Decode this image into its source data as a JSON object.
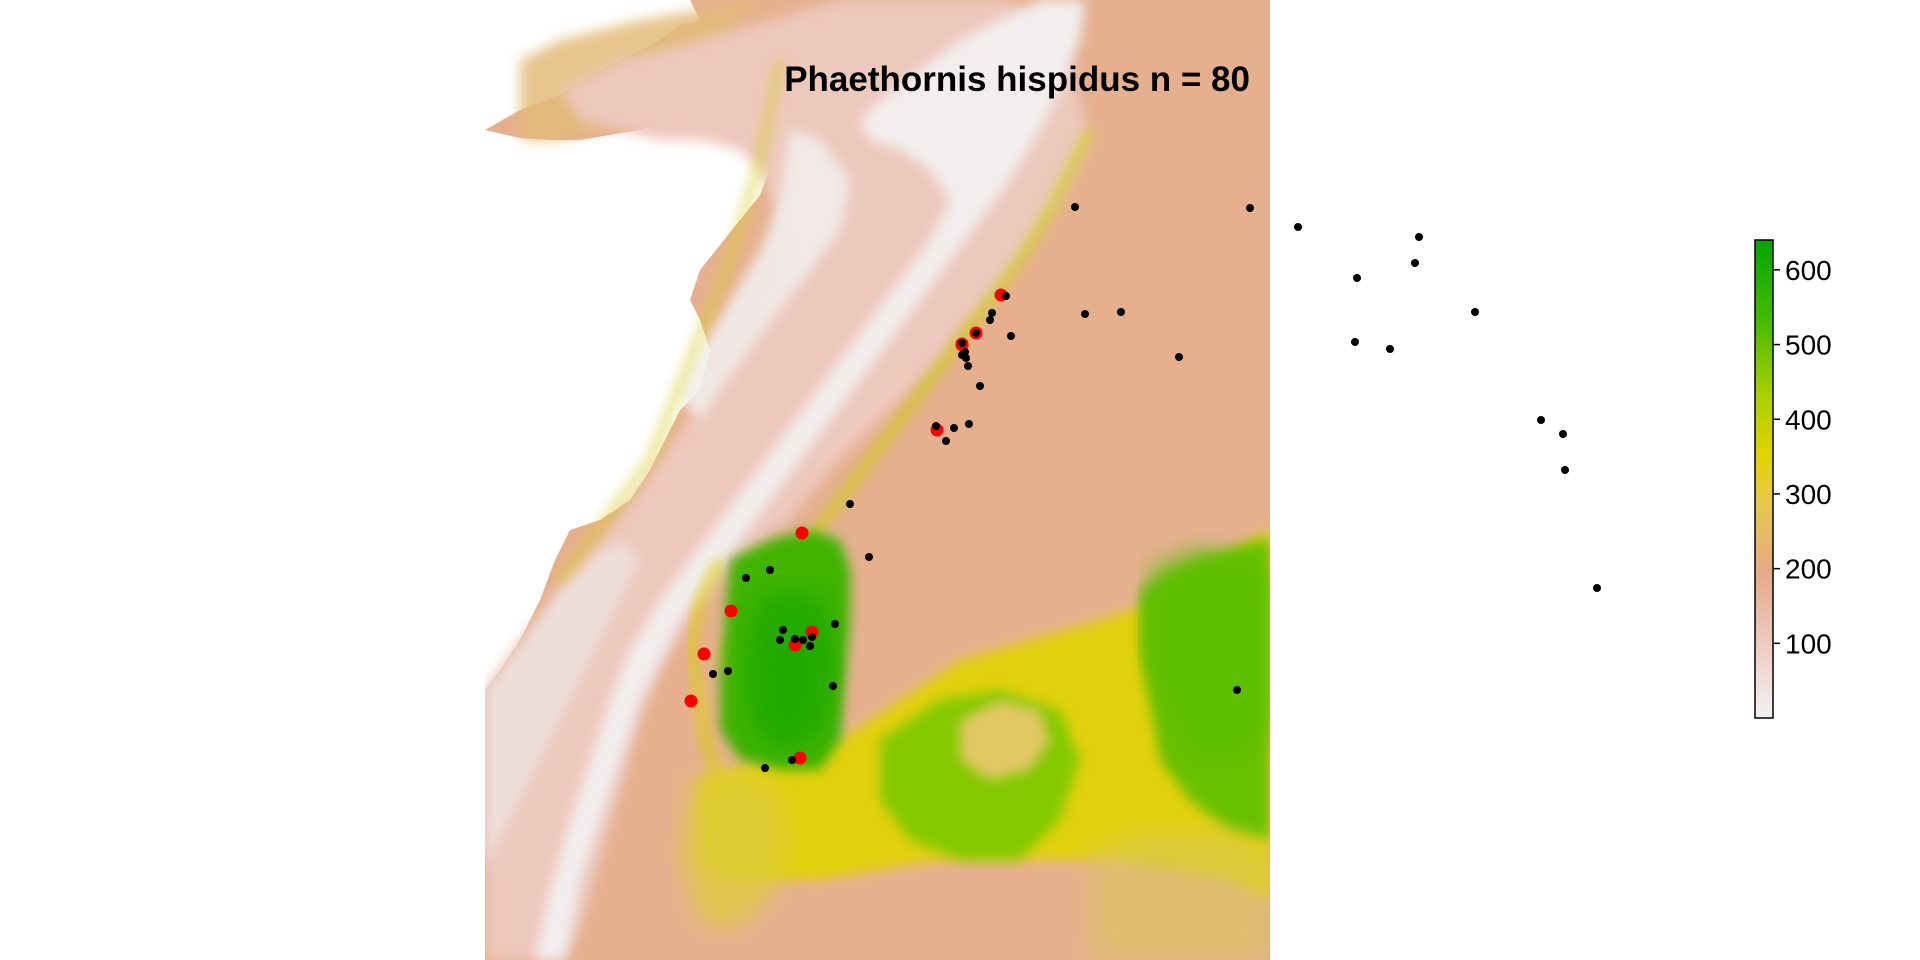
{
  "title": "Phaethornis hispidus n = 80",
  "legend": {
    "min": 0,
    "max": 640,
    "ticks": [
      {
        "value": 100,
        "label": "100"
      },
      {
        "value": 200,
        "label": "200"
      },
      {
        "value": 300,
        "label": "300"
      },
      {
        "value": 400,
        "label": "400"
      },
      {
        "value": 500,
        "label": "500"
      },
      {
        "value": 600,
        "label": "600"
      }
    ],
    "colors": {
      "low": "#f2f2f2",
      "mid_low": "#e6a98a",
      "mid": "#e8c84a",
      "mid_high": "#c8d800",
      "high": "#00a600"
    }
  },
  "map_colors": {
    "background": "#ffffff",
    "ocean": "#ffffff",
    "andes_high": "#f2eeee",
    "highland": "#edc8bc",
    "lowland": "#e6b08f",
    "sand": "#e3bb79",
    "yellow": "#e1d400",
    "yellow_green": "#b5d400",
    "green": "#4dbb00",
    "dark_green": "#1ea900",
    "record_black": "#000000",
    "record_red": "#ff0000"
  },
  "occurrences_note": "black = records, red = highlighted records"
}
